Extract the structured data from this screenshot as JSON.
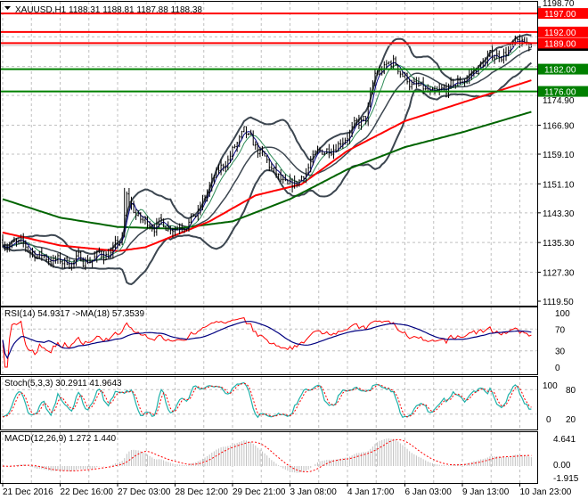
{
  "chart_data": {
    "type": "ohlc",
    "symbol_header": "XAUUSD,H1  1188.31 1188.81 1187.88 1188.38",
    "quote": {
      "symbol": "XAUUSD",
      "timeframe": "H1",
      "open": 1188.31,
      "high": 1188.81,
      "low": 1187.88,
      "close": 1188.38
    },
    "y_ticks": [
      "1198.70",
      "1174.90",
      "1166.90",
      "1159.10",
      "1151.10",
      "1143.30",
      "1135.30",
      "1127.30",
      "1119.50"
    ],
    "ylim": [
      1119.5,
      1198.7
    ],
    "x_ticks": [
      "21 Dec 2016",
      "22 Dec 16:00",
      "27 Dec 03:00",
      "28 Dec 12:00",
      "29 Dec 21:00",
      "3 Jan 08:00",
      "4 Jan 17:00",
      "6 Jan 03:00",
      "9 Jan 13:00",
      "10 Jan 23:00"
    ],
    "grid": true,
    "levels": [
      {
        "price": 1197.0,
        "label": "1197.00",
        "color": "#ff0000"
      },
      {
        "price": 1192.0,
        "label": "1192.00",
        "color": "#ff0000"
      },
      {
        "price": 1189.0,
        "label": "1189.00",
        "color": "#ff0000"
      },
      {
        "price": 1182.0,
        "label": "1182.00",
        "color": "#008000"
      },
      {
        "price": 1176.0,
        "label": "1176.00",
        "color": "#008000"
      }
    ],
    "close_keypoints": [
      [
        0,
        1136
      ],
      [
        12,
        1133
      ],
      [
        25,
        1130
      ],
      [
        38,
        1131
      ],
      [
        48,
        1133
      ],
      [
        52,
        1136
      ],
      [
        54,
        1147
      ],
      [
        60,
        1141
      ],
      [
        75,
        1140
      ],
      [
        85,
        1143
      ],
      [
        90,
        1150
      ],
      [
        100,
        1160
      ],
      [
        105,
        1164
      ],
      [
        112,
        1159
      ],
      [
        118,
        1154
      ],
      [
        124,
        1149
      ],
      [
        128,
        1151
      ],
      [
        134,
        1157
      ],
      [
        150,
        1165
      ],
      [
        158,
        1168
      ],
      [
        162,
        1180
      ],
      [
        170,
        1184
      ],
      [
        178,
        1178
      ],
      [
        188,
        1174
      ],
      [
        200,
        1179
      ],
      [
        212,
        1185
      ],
      [
        222,
        1188
      ],
      [
        230,
        1188.38
      ]
    ],
    "moving_averages": [
      {
        "color": "#006400",
        "keypoints": [
          [
            0,
            1147
          ],
          [
            25,
            1142
          ],
          [
            50,
            1139.5
          ],
          [
            75,
            1139
          ],
          [
            100,
            1141
          ],
          [
            125,
            1147
          ],
          [
            150,
            1155
          ],
          [
            175,
            1161
          ],
          [
            200,
            1165
          ],
          [
            230,
            1170.5
          ]
        ]
      },
      {
        "color": "#ff0000",
        "keypoints": [
          [
            0,
            1138
          ],
          [
            25,
            1134.5
          ],
          [
            50,
            1133
          ],
          [
            62,
            1134
          ],
          [
            90,
            1141
          ],
          [
            110,
            1148
          ],
          [
            130,
            1151
          ],
          [
            150,
            1160
          ],
          [
            175,
            1168
          ],
          [
            200,
            1173
          ],
          [
            230,
            1179
          ]
        ]
      }
    ],
    "indicators": {
      "rsi": {
        "title": "RSI(14) 54.9317  ->MA(18) 57.3539",
        "rsi": 54.9317,
        "ma": 57.3539,
        "levels": [
          "100",
          "70",
          "30",
          "0"
        ],
        "color": "#ff0000",
        "ma_color": "#000080"
      },
      "stoch": {
        "title": "Stoch(5,3,3) 30.2911 41.9643",
        "k": 30.2911,
        "d": 41.9643,
        "levels": [
          "100",
          "80",
          "20",
          "0"
        ],
        "k_color": "#20b2aa",
        "d_color": "#ff0000"
      },
      "macd": {
        "title": "MACD(12,26,9) 1.272 1.440",
        "main": 1.272,
        "signal": 1.44,
        "levels": [
          "4.641",
          "0.00",
          "-1.915"
        ],
        "hist_color": "#c0c0c0",
        "signal_color": "#ff0000"
      }
    }
  }
}
